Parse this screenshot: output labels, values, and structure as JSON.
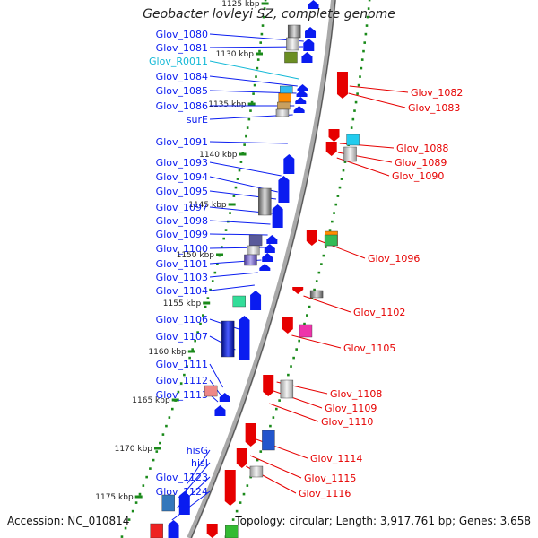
{
  "title": "Geobacter lovleyi SZ, complete genome",
  "accession": "Accession: NC_010814",
  "topology": "Topology: circular; Length: 3,917,761 bp; Genes: 3,658",
  "colors": {
    "backbone": "#a9a9a9",
    "forward_feature": "#0a1cf0",
    "reverse_feature": "#e60000",
    "rna_label": "#11b8d6",
    "tick": "#1a8a1a"
  },
  "ticks": [
    {
      "label": "1125 kbp"
    },
    {
      "label": "1130 kbp"
    },
    {
      "label": "1135 kbp"
    },
    {
      "label": "1140 kbp"
    },
    {
      "label": "1145 kbp"
    },
    {
      "label": "1150 kbp"
    },
    {
      "label": "1155 kbp"
    },
    {
      "label": "1160 kbp"
    },
    {
      "label": "1165 kbp"
    },
    {
      "label": "1170 kbp"
    },
    {
      "label": "1175 kbp"
    }
  ],
  "forward_labels": [
    "Glov_1080",
    "Glov_1081",
    "Glov_R0011",
    "Glov_1084",
    "Glov_1085",
    "Glov_1086",
    "surE",
    "Glov_1091",
    "Glov_1093",
    "Glov_1094",
    "Glov_1095",
    "Glov_1097",
    "Glov_1098",
    "Glov_1099",
    "Glov_1100",
    "Glov_1101",
    "Glov_1103",
    "Glov_1104",
    "Glov_1106",
    "Glov_1107",
    "Glov_1111",
    "Glov_1112",
    "Glov_1113",
    "hisG",
    "hisI",
    "Glov_1123",
    "Glov_1124"
  ],
  "reverse_labels": [
    "Glov_1082",
    "Glov_1083",
    "Glov_1088",
    "Glov_1089",
    "Glov_1090",
    "Glov_1096",
    "Glov_1102",
    "Glov_1105",
    "Glov_1108",
    "Glov_1109",
    "Glov_1110",
    "Glov_1114",
    "Glov_1115",
    "Glov_1116"
  ]
}
